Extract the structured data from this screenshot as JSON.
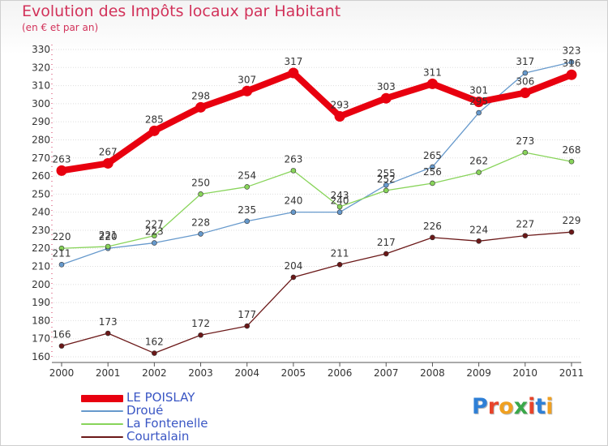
{
  "header": {
    "title": "Evolution des Impôts locaux par Habitant",
    "subtitle": "(en € et par an)"
  },
  "logo": {
    "text": "Proxiti"
  },
  "colors": {
    "title": "#d2325a",
    "axis": "#333333",
    "grid": "#dddddd",
    "legend_text": "#3a56c4"
  },
  "chart_data": {
    "type": "line",
    "title": "Evolution des Impôts locaux par Habitant",
    "subtitle": "(en € et par an)",
    "xlabel": "",
    "ylabel": "",
    "x": [
      "2000",
      "2001",
      "2002",
      "2003",
      "2004",
      "2005",
      "2006",
      "2007",
      "2008",
      "2009",
      "2010",
      "2011"
    ],
    "ylim": [
      160,
      330
    ],
    "yticks": [
      160,
      170,
      180,
      190,
      200,
      210,
      220,
      230,
      240,
      250,
      260,
      270,
      280,
      290,
      300,
      310,
      320,
      330
    ],
    "grid": true,
    "legend_position": "bottom-left",
    "series": [
      {
        "name": "LE POISLAY",
        "color": "#e8000f",
        "weight": "bold",
        "values": [
          263,
          267,
          285,
          298,
          307,
          317,
          293,
          303,
          311,
          301,
          306,
          316
        ]
      },
      {
        "name": "Droué",
        "color": "#6699cc",
        "weight": "thin",
        "values": [
          211,
          220,
          223,
          228,
          235,
          240,
          240,
          255,
          265,
          295,
          317,
          323
        ]
      },
      {
        "name": "La Fontenelle",
        "color": "#88d45a",
        "weight": "thin",
        "values": [
          220,
          221,
          227,
          250,
          254,
          263,
          243,
          252,
          256,
          262,
          273,
          268
        ]
      },
      {
        "name": "Courtalain",
        "color": "#6b1818",
        "weight": "thin",
        "values": [
          166,
          173,
          162,
          172,
          177,
          204,
          211,
          217,
          226,
          224,
          227,
          229
        ]
      }
    ],
    "data_labels": [
      [
        "263",
        "267",
        "285",
        "298",
        "307",
        "317",
        "293",
        "303",
        "311",
        "301",
        "306",
        "316"
      ],
      [
        "211",
        "220",
        "223",
        "228",
        "235",
        "240",
        "240",
        "255",
        "265",
        "295",
        "317",
        "323"
      ],
      [
        "220",
        "221",
        "227",
        "250",
        "254",
        "263",
        "243",
        "252",
        "256",
        "262",
        "273",
        "268"
      ],
      [
        "166",
        "173",
        "162",
        "172",
        "177",
        "204",
        "211",
        "217",
        "226",
        "224",
        "227",
        "229"
      ]
    ]
  }
}
